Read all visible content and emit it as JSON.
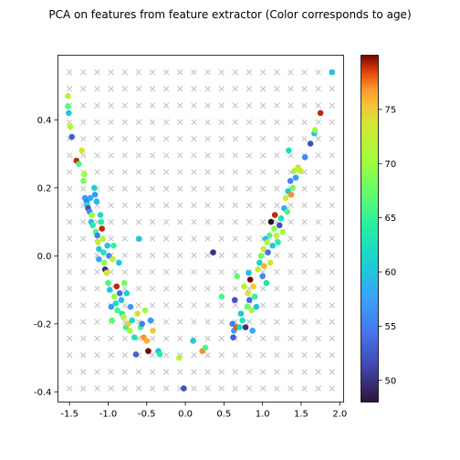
{
  "chart_data": {
    "type": "scatter",
    "title": "PCA on features from feature extractor (Color corresponds to age)",
    "xlabel": "",
    "ylabel": "",
    "xlim": [
      -1.65,
      2.05
    ],
    "ylim": [
      -0.43,
      0.59
    ],
    "xticks": [
      "-1.5",
      "-1.0",
      "-0.5",
      "0.0",
      "0.5",
      "1.0",
      "1.5",
      "2.0"
    ],
    "yticks": [
      "-0.4",
      "-0.2",
      "0.0",
      "0.2",
      "0.4"
    ],
    "grid": false,
    "legend": "none",
    "background_grid_markers": {
      "marker": "x",
      "color": "#c8c8c8",
      "x_range": [
        -1.5,
        1.9
      ],
      "y_range": [
        -0.39,
        0.54
      ],
      "nx": 20,
      "ny": 20
    },
    "colorbar": {
      "cmap": "turbo",
      "range": [
        48,
        80
      ],
      "ticks": [
        "50",
        "55",
        "60",
        "65",
        "70",
        "75"
      ]
    },
    "points": [
      {
        "x": -1.52,
        "y": 0.47,
        "age": 72
      },
      {
        "x": -1.52,
        "y": 0.44,
        "age": 67
      },
      {
        "x": -1.51,
        "y": 0.42,
        "age": 60
      },
      {
        "x": -1.49,
        "y": 0.38,
        "age": 71
      },
      {
        "x": -1.47,
        "y": 0.35,
        "age": 53
      },
      {
        "x": -1.41,
        "y": 0.28,
        "age": 79
      },
      {
        "x": -1.38,
        "y": 0.27,
        "age": 66
      },
      {
        "x": -1.34,
        "y": 0.31,
        "age": 74
      },
      {
        "x": -1.31,
        "y": 0.24,
        "age": 70
      },
      {
        "x": -1.32,
        "y": 0.22,
        "age": 68
      },
      {
        "x": -1.3,
        "y": 0.17,
        "age": 57
      },
      {
        "x": -1.28,
        "y": 0.16,
        "age": 55
      },
      {
        "x": -1.27,
        "y": 0.15,
        "age": 62
      },
      {
        "x": -1.26,
        "y": 0.14,
        "age": 52
      },
      {
        "x": -1.24,
        "y": 0.13,
        "age": 56
      },
      {
        "x": -1.23,
        "y": 0.17,
        "age": 58
      },
      {
        "x": -1.21,
        "y": 0.12,
        "age": 70
      },
      {
        "x": -1.22,
        "y": 0.1,
        "age": 60
      },
      {
        "x": -1.2,
        "y": 0.09,
        "age": 64
      },
      {
        "x": -1.18,
        "y": 0.2,
        "age": 61
      },
      {
        "x": -1.17,
        "y": 0.18,
        "age": 57
      },
      {
        "x": -1.15,
        "y": 0.16,
        "age": 59
      },
      {
        "x": -1.16,
        "y": 0.07,
        "age": 66
      },
      {
        "x": -1.14,
        "y": 0.06,
        "age": 55
      },
      {
        "x": -1.13,
        "y": 0.04,
        "age": 73
      },
      {
        "x": -1.12,
        "y": 0.02,
        "age": 60
      },
      {
        "x": -1.12,
        "y": -0.01,
        "age": 58
      },
      {
        "x": -1.1,
        "y": 0.12,
        "age": 62
      },
      {
        "x": -1.09,
        "y": 0.1,
        "age": 64
      },
      {
        "x": -1.08,
        "y": 0.08,
        "age": 79
      },
      {
        "x": -1.07,
        "y": 0.05,
        "age": 71
      },
      {
        "x": -1.06,
        "y": 0.01,
        "age": 63
      },
      {
        "x": -1.05,
        "y": -0.02,
        "age": 69
      },
      {
        "x": -1.04,
        "y": -0.04,
        "age": 50
      },
      {
        "x": -1.02,
        "y": -0.05,
        "age": 74
      },
      {
        "x": -1.01,
        "y": 0.03,
        "age": 60
      },
      {
        "x": -1.0,
        "y": -0.08,
        "age": 66
      },
      {
        "x": -0.99,
        "y": 0.0,
        "age": 56
      },
      {
        "x": -0.98,
        "y": -0.1,
        "age": 60
      },
      {
        "x": -0.96,
        "y": -0.15,
        "age": 57
      },
      {
        "x": -0.95,
        "y": -0.19,
        "age": 67
      },
      {
        "x": -0.94,
        "y": -0.01,
        "age": 73
      },
      {
        "x": -0.93,
        "y": 0.03,
        "age": 65
      },
      {
        "x": -0.92,
        "y": -0.12,
        "age": 70
      },
      {
        "x": -0.9,
        "y": -0.14,
        "age": 62
      },
      {
        "x": -0.89,
        "y": -0.09,
        "age": 79
      },
      {
        "x": -0.88,
        "y": -0.16,
        "age": 66
      },
      {
        "x": -0.86,
        "y": -0.02,
        "age": 60
      },
      {
        "x": -0.85,
        "y": -0.11,
        "age": 54
      },
      {
        "x": -0.83,
        "y": -0.13,
        "age": 59
      },
      {
        "x": -0.82,
        "y": -0.17,
        "age": 64
      },
      {
        "x": -0.8,
        "y": -0.18,
        "age": 72
      },
      {
        "x": -0.79,
        "y": -0.08,
        "age": 68
      },
      {
        "x": -0.77,
        "y": -0.21,
        "age": 65
      },
      {
        "x": -0.76,
        "y": -0.11,
        "age": 61
      },
      {
        "x": -0.74,
        "y": -0.2,
        "age": 75
      },
      {
        "x": -0.72,
        "y": -0.22,
        "age": 70
      },
      {
        "x": -0.71,
        "y": -0.15,
        "age": 57
      },
      {
        "x": -0.69,
        "y": -0.19,
        "age": 62
      },
      {
        "x": -0.66,
        "y": -0.24,
        "age": 63
      },
      {
        "x": -0.64,
        "y": -0.29,
        "age": 53
      },
      {
        "x": -0.62,
        "y": -0.17,
        "age": 74
      },
      {
        "x": -0.6,
        "y": 0.05,
        "age": 60
      },
      {
        "x": -0.58,
        "y": -0.21,
        "age": 66
      },
      {
        "x": -0.56,
        "y": -0.2,
        "age": 55
      },
      {
        "x": -0.54,
        "y": -0.24,
        "age": 77
      },
      {
        "x": -0.52,
        "y": -0.16,
        "age": 70
      },
      {
        "x": -0.5,
        "y": -0.25,
        "age": 76
      },
      {
        "x": -0.48,
        "y": -0.28,
        "age": 80
      },
      {
        "x": -0.45,
        "y": -0.19,
        "age": 57
      },
      {
        "x": -0.42,
        "y": -0.22,
        "age": 75
      },
      {
        "x": -0.35,
        "y": -0.28,
        "age": 60
      },
      {
        "x": -0.33,
        "y": -0.29,
        "age": 64
      },
      {
        "x": -0.08,
        "y": -0.3,
        "age": 72
      },
      {
        "x": -0.02,
        "y": -0.39,
        "age": 52
      },
      {
        "x": 0.1,
        "y": -0.25,
        "age": 60
      },
      {
        "x": 0.22,
        "y": -0.28,
        "age": 77
      },
      {
        "x": 0.26,
        "y": -0.27,
        "age": 66
      },
      {
        "x": 0.36,
        "y": 0.01,
        "age": 50
      },
      {
        "x": 0.47,
        "y": -0.12,
        "age": 66
      },
      {
        "x": 0.61,
        "y": -0.2,
        "age": 55
      },
      {
        "x": 0.62,
        "y": -0.24,
        "age": 53
      },
      {
        "x": 0.63,
        "y": -0.22,
        "age": 57
      },
      {
        "x": 0.64,
        "y": -0.13,
        "age": 52
      },
      {
        "x": 0.66,
        "y": -0.21,
        "age": 78
      },
      {
        "x": 0.67,
        "y": -0.06,
        "age": 67
      },
      {
        "x": 0.7,
        "y": -0.21,
        "age": 62
      },
      {
        "x": 0.72,
        "y": -0.17,
        "age": 60
      },
      {
        "x": 0.74,
        "y": -0.19,
        "age": 63
      },
      {
        "x": 0.76,
        "y": -0.09,
        "age": 72
      },
      {
        "x": 0.78,
        "y": -0.21,
        "age": 50
      },
      {
        "x": 0.8,
        "y": -0.15,
        "age": 68
      },
      {
        "x": 0.81,
        "y": -0.11,
        "age": 74
      },
      {
        "x": 0.82,
        "y": -0.05,
        "age": 60
      },
      {
        "x": 0.83,
        "y": -0.13,
        "age": 54
      },
      {
        "x": 0.84,
        "y": -0.07,
        "age": 80
      },
      {
        "x": 0.86,
        "y": -0.16,
        "age": 70
      },
      {
        "x": 0.87,
        "y": -0.22,
        "age": 58
      },
      {
        "x": 0.88,
        "y": -0.09,
        "age": 75
      },
      {
        "x": 0.9,
        "y": -0.12,
        "age": 65
      },
      {
        "x": 0.92,
        "y": -0.15,
        "age": 60
      },
      {
        "x": 0.94,
        "y": -0.04,
        "age": 72
      },
      {
        "x": 0.96,
        "y": -0.02,
        "age": 61
      },
      {
        "x": 0.98,
        "y": 0.0,
        "age": 68
      },
      {
        "x": 1.0,
        "y": -0.06,
        "age": 56
      },
      {
        "x": 1.01,
        "y": 0.02,
        "age": 73
      },
      {
        "x": 1.02,
        "y": -0.03,
        "age": 76
      },
      {
        "x": 1.04,
        "y": 0.05,
        "age": 59
      },
      {
        "x": 1.05,
        "y": -0.08,
        "age": 63
      },
      {
        "x": 1.06,
        "y": 0.04,
        "age": 71
      },
      {
        "x": 1.07,
        "y": 0.01,
        "age": 54
      },
      {
        "x": 1.09,
        "y": 0.06,
        "age": 66
      },
      {
        "x": 1.1,
        "y": -0.02,
        "age": 74
      },
      {
        "x": 1.11,
        "y": 0.1,
        "age": 48
      },
      {
        "x": 1.13,
        "y": 0.03,
        "age": 60
      },
      {
        "x": 1.15,
        "y": 0.08,
        "age": 69
      },
      {
        "x": 1.16,
        "y": 0.12,
        "age": 79
      },
      {
        "x": 1.18,
        "y": 0.06,
        "age": 72
      },
      {
        "x": 1.2,
        "y": 0.04,
        "age": 64
      },
      {
        "x": 1.22,
        "y": 0.09,
        "age": 52
      },
      {
        "x": 1.24,
        "y": 0.11,
        "age": 62
      },
      {
        "x": 1.26,
        "y": 0.07,
        "age": 70
      },
      {
        "x": 1.28,
        "y": 0.14,
        "age": 58
      },
      {
        "x": 1.3,
        "y": 0.17,
        "age": 73
      },
      {
        "x": 1.32,
        "y": 0.13,
        "age": 66
      },
      {
        "x": 1.33,
        "y": 0.19,
        "age": 60
      },
      {
        "x": 1.34,
        "y": 0.31,
        "age": 62
      },
      {
        "x": 1.36,
        "y": 0.22,
        "age": 55
      },
      {
        "x": 1.37,
        "y": 0.18,
        "age": 77
      },
      {
        "x": 1.39,
        "y": 0.2,
        "age": 68
      },
      {
        "x": 1.41,
        "y": 0.25,
        "age": 71
      },
      {
        "x": 1.43,
        "y": 0.23,
        "age": 57
      },
      {
        "x": 1.46,
        "y": 0.26,
        "age": 74
      },
      {
        "x": 1.49,
        "y": 0.25,
        "age": 72
      },
      {
        "x": 1.55,
        "y": 0.29,
        "age": 56
      },
      {
        "x": 1.62,
        "y": 0.33,
        "age": 52
      },
      {
        "x": 1.67,
        "y": 0.36,
        "age": 60
      },
      {
        "x": 1.68,
        "y": 0.37,
        "age": 70
      },
      {
        "x": 1.75,
        "y": 0.42,
        "age": 79
      },
      {
        "x": 1.9,
        "y": 0.54,
        "age": 60
      }
    ]
  }
}
